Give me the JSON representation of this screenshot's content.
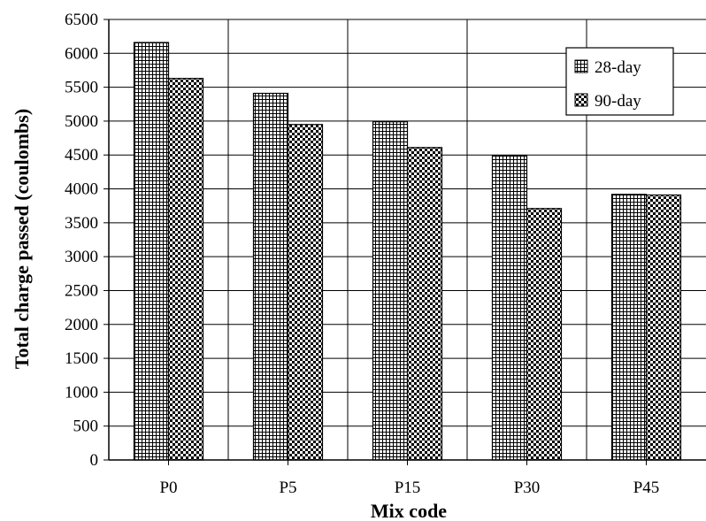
{
  "chart_data": {
    "type": "bar",
    "title": "",
    "xlabel": "Mix code",
    "ylabel": "Total charge passed (coulombs)",
    "categories": [
      "P0",
      "P5",
      "P15",
      "P30",
      "P45"
    ],
    "series": [
      {
        "name": "28-day",
        "values": [
          6160,
          5410,
          4990,
          4490,
          3920
        ],
        "pattern": "grid"
      },
      {
        "name": "90-day",
        "values": [
          5630,
          4950,
          4610,
          3710,
          3910
        ],
        "pattern": "checker"
      }
    ],
    "ylim": [
      0,
      6500
    ],
    "yticks": [
      0,
      500,
      1000,
      1500,
      2000,
      2500,
      3000,
      3500,
      4000,
      4500,
      5000,
      5500,
      6000,
      6500
    ],
    "grid": true,
    "legend_position": "top-right",
    "colors": {
      "ink": "#000000",
      "background": "#ffffff"
    }
  }
}
